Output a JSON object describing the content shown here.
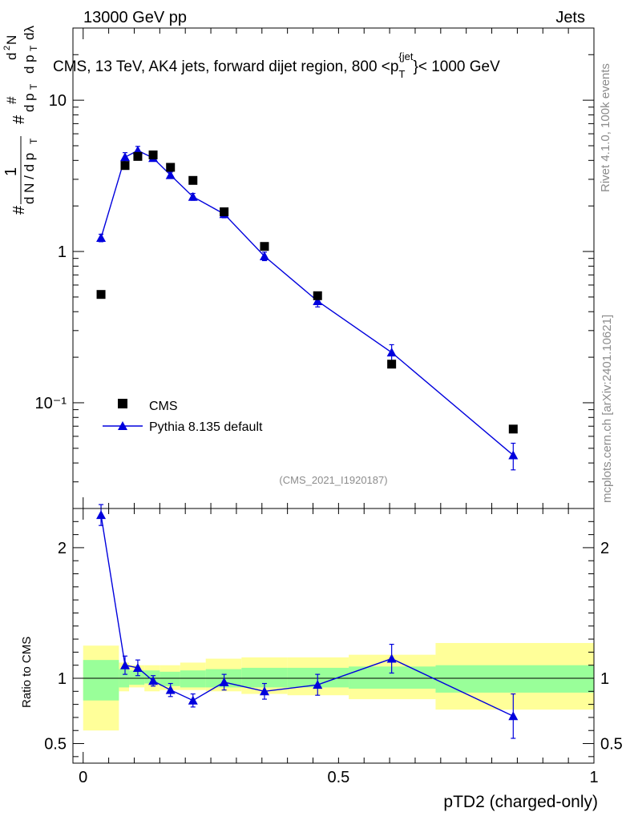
{
  "header": {
    "left": "13000 GeV pp",
    "right": "Jets"
  },
  "side_labels": {
    "rivet": "Rivet 4.1.0,  100k events",
    "mcplots": "mcplots.cern.ch [arXiv:2401.10621]"
  },
  "chart_data": [
    {
      "type": "scatter",
      "panel": "main",
      "title": "CMS, 13 TeV, AK4 jets, forward dijet region, 800 <p_T^{jet}< 1000 GeV",
      "ylabel": "1/(dN/dp_T) d²N/(dp_T dλ)",
      "yscale": "log",
      "ylim": [
        0.02,
        30
      ],
      "xlim": [
        -0.02,
        1.0
      ],
      "y_ticks": [
        "10",
        "1",
        "10⁻¹"
      ],
      "analysis_id": "(CMS_2021_I1920187)",
      "legend_position": "bottom-left",
      "series": [
        {
          "name": "CMS",
          "marker": "square",
          "color": "#000000",
          "x": [
            0.035,
            0.082,
            0.107,
            0.137,
            0.171,
            0.215,
            0.276,
            0.355,
            0.459,
            0.604,
            0.842
          ],
          "y": [
            0.52,
            3.7,
            4.25,
            4.35,
            3.6,
            2.95,
            1.83,
            1.08,
            0.51,
            0.18,
            0.067
          ]
        },
        {
          "name": "Pythia 8.135 default",
          "marker": "triangle",
          "color": "#0000dd",
          "x": [
            0.035,
            0.082,
            0.107,
            0.137,
            0.171,
            0.215,
            0.276,
            0.355,
            0.459,
            0.604,
            0.842
          ],
          "y": [
            1.23,
            4.2,
            4.65,
            4.15,
            3.2,
            2.3,
            1.77,
            0.93,
            0.47,
            0.215,
            0.045
          ],
          "err": [
            0.07,
            0.3,
            0.3,
            0.15,
            0.15,
            0.12,
            0.1,
            0.06,
            0.04,
            0.027,
            0.009
          ]
        }
      ]
    },
    {
      "type": "scatter",
      "panel": "ratio",
      "xlabel": "pTD2 (charged-only)",
      "ylabel": "Ratio to CMS",
      "ylim": [
        0.35,
        2.3
      ],
      "xlim": [
        -0.02,
        1.0
      ],
      "x_ticks": [
        "0",
        "0.5",
        "1"
      ],
      "y_ticks": [
        "0.5",
        "1",
        "2"
      ],
      "bands": {
        "edges": [
          0.0,
          0.07,
          0.09,
          0.12,
          0.15,
          0.19,
          0.24,
          0.31,
          0.4,
          0.52,
          0.69,
          1.0
        ],
        "stat_lo": [
          0.83,
          0.93,
          0.95,
          0.96,
          0.94,
          0.93,
          0.93,
          0.93,
          0.93,
          0.92,
          0.89
        ],
        "stat_hi": [
          1.14,
          1.07,
          1.06,
          1.06,
          1.05,
          1.06,
          1.07,
          1.08,
          1.08,
          1.09,
          1.1
        ],
        "total_lo": [
          0.6,
          0.9,
          0.93,
          0.9,
          0.91,
          0.91,
          0.9,
          0.88,
          0.87,
          0.84,
          0.76
        ],
        "total_hi": [
          1.25,
          1.12,
          1.1,
          1.1,
          1.1,
          1.12,
          1.15,
          1.16,
          1.16,
          1.18,
          1.27
        ]
      },
      "stat_color": "#99ff99",
      "total_color": "#ffff99",
      "series": [
        {
          "name": "Pythia 8.135 default / CMS",
          "color": "#0000dd",
          "x": [
            0.035,
            0.082,
            0.107,
            0.137,
            0.171,
            0.215,
            0.276,
            0.355,
            0.459,
            0.604,
            0.842
          ],
          "y": [
            2.25,
            1.1,
            1.08,
            0.98,
            0.91,
            0.83,
            0.97,
            0.9,
            0.95,
            1.15,
            0.71
          ],
          "err": [
            0.08,
            0.07,
            0.06,
            0.04,
            0.05,
            0.05,
            0.06,
            0.06,
            0.08,
            0.11,
            0.17
          ]
        }
      ]
    }
  ]
}
